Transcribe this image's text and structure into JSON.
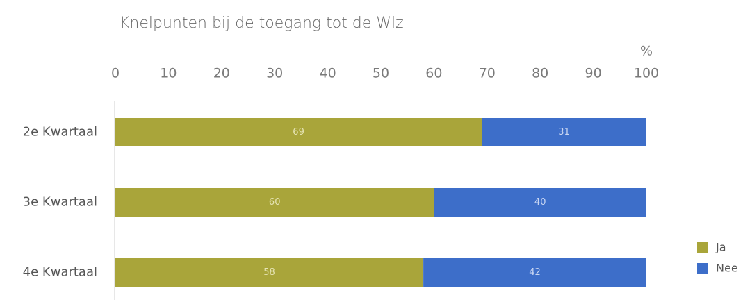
{
  "chart_data": {
    "type": "stacked_barh",
    "title": "Knelpunten bij de toegang tot de Wlz",
    "xlabel": "%",
    "categories": [
      "2e Kwartaal",
      "3e Kwartaal",
      "4e Kwartaal"
    ],
    "series": [
      {
        "name": "Ja",
        "color": "#a9a53a",
        "label_color": "#e6e4b4",
        "values": [
          69,
          60,
          58
        ]
      },
      {
        "name": "Nee",
        "color": "#3d6ec9",
        "label_color": "#c9d6f2",
        "values": [
          31,
          40,
          42
        ]
      }
    ],
    "xlim": [
      0,
      100
    ],
    "xticks": [
      0,
      10,
      20,
      30,
      40,
      50,
      60,
      70,
      80,
      90,
      100
    ],
    "legend": "lower right"
  }
}
